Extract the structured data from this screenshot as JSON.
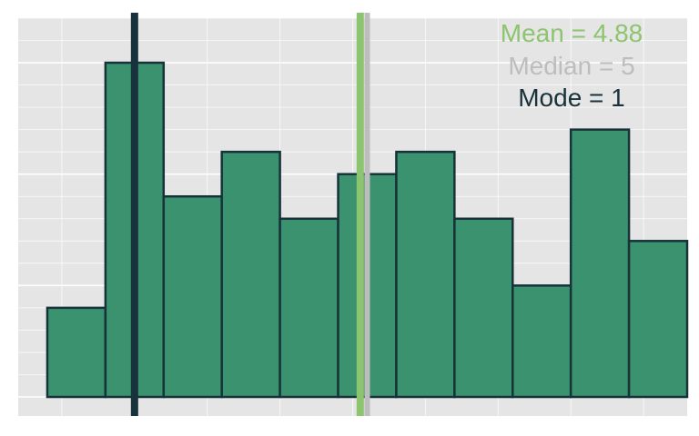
{
  "chart_data": {
    "type": "bar",
    "bins": [
      {
        "x0": 0,
        "x1": 1,
        "count": 4
      },
      {
        "x0": 1,
        "x1": 2,
        "count": 15
      },
      {
        "x0": 2,
        "x1": 3,
        "count": 9
      },
      {
        "x0": 3,
        "x1": 4,
        "count": 11
      },
      {
        "x0": 4,
        "x1": 5,
        "count": 8
      },
      {
        "x0": 5,
        "x1": 6,
        "count": 10
      },
      {
        "x0": 6,
        "x1": 7,
        "count": 11
      },
      {
        "x0": 7,
        "x1": 8,
        "count": 8
      },
      {
        "x0": 8,
        "x1": 9,
        "count": 5
      },
      {
        "x0": 9,
        "x1": 10,
        "count": 12
      },
      {
        "x0": 10,
        "x1": 11,
        "count": 7
      }
    ],
    "xlim": [
      -0.5,
      11.0
    ],
    "ylim": [
      0,
      17
    ],
    "grid": true,
    "colors": {
      "background": "#e5e5e5",
      "bar_fill": "#3a936e",
      "bar_outline": "#17323a",
      "mean": "#8dc46f",
      "median": "#bdbdbd",
      "mode": "#17323a"
    },
    "reference_lines": [
      {
        "key": "mode",
        "x": 1.5
      },
      {
        "key": "mean",
        "x": 5.38
      },
      {
        "key": "median",
        "x": 5.5
      }
    ],
    "annotations": {
      "mean": "Mean = 4.88",
      "median": "Median = 5",
      "mode": "Mode = 1"
    }
  }
}
